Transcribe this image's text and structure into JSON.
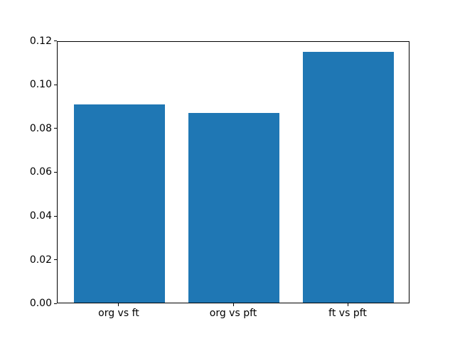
{
  "chart_data": {
    "type": "bar",
    "categories": [
      "org vs ft",
      "org vs pft",
      "ft vs pft"
    ],
    "values": [
      0.0905,
      0.0866,
      0.1148
    ],
    "title": "",
    "xlabel": "",
    "ylabel": "",
    "ylim": [
      0,
      0.12
    ],
    "ytick_labels": [
      "0.00",
      "0.02",
      "0.04",
      "0.06",
      "0.08",
      "0.10",
      "0.12"
    ],
    "bar_color": "#1f77b4",
    "grid": false,
    "legend": null
  }
}
